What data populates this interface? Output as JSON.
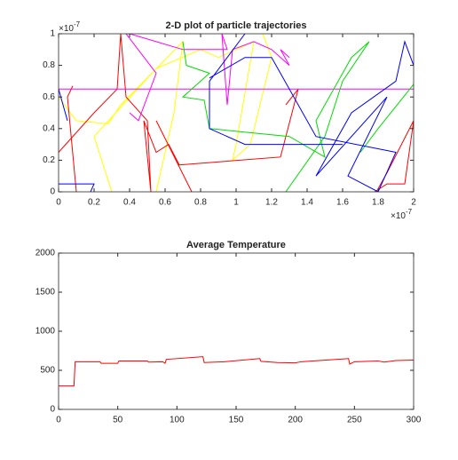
{
  "chart_data": [
    {
      "type": "line",
      "title": "2-D plot of particle trajectories",
      "xlim": [
        0,
        2e-07
      ],
      "ylim": [
        0,
        1e-07
      ],
      "xticks": [
        0,
        {
          "value": 2e-08,
          "label": "0.2"
        },
        {
          "value": 4e-08,
          "label": "0.4"
        },
        {
          "value": 6e-08,
          "label": "0.6"
        },
        {
          "value": 8e-08,
          "label": "0.8"
        },
        {
          "value": 1e-07,
          "label": "1"
        },
        {
          "value": 1.2e-07,
          "label": "1.2"
        },
        {
          "value": 1.4e-07,
          "label": "1.4"
        },
        {
          "value": 1.6e-07,
          "label": "1.6"
        },
        {
          "value": 1.8e-07,
          "label": "1.8"
        },
        {
          "value": 2e-07,
          "label": "2"
        }
      ],
      "yticks": [
        0,
        {
          "value": 2e-08,
          "label": "0.2"
        },
        {
          "value": 4e-08,
          "label": "0.4"
        },
        {
          "value": 6e-08,
          "label": "0.6"
        },
        {
          "value": 8e-08,
          "label": "0.8"
        },
        {
          "value": 1e-07,
          "label": "1"
        }
      ],
      "xexponent": {
        "base": "×10",
        "power": "-7"
      },
      "yexponent": {
        "base": "×10",
        "power": "-7"
      },
      "series": [
        {
          "color": "#ffff00",
          "x": [
            0,
            1e-08,
            2.8e-08,
            3.5e-08,
            7e-08,
            6.5e-08,
            5.5e-08,
            null,
            3e-08,
            2e-08,
            5.5e-08,
            8e-08,
            9e-08,
            1.1e-07,
            1e-07,
            9.8e-08,
            1.08e-07,
            1.2e-07,
            1.15e-07
          ],
          "values": [
            6e-08,
            4.5e-08,
            4.3e-08,
            5.5e-08,
            9.5e-08,
            5e-08,
            0,
            null,
            0,
            3.5e-08,
            7.8e-08,
            9e-08,
            8.5e-08,
            9.5e-08,
            3e-08,
            2e-08,
            3e-08,
            8.5e-08,
            1e-07
          ]
        },
        {
          "color": "#ff0000",
          "x": [
            0,
            2e-08,
            3.3e-08,
            3.5e-08,
            3.8e-08,
            5e-08,
            5.2e-08,
            4.8e-08,
            5.5e-08,
            6.2e-08,
            6.8e-08,
            1.25e-07,
            1.35e-07,
            1.28e-07,
            null,
            5.5e-08,
            7.5e-08,
            null,
            1.78e-07,
            1.85e-07,
            1.95e-07,
            2e-07,
            1.85e-07,
            1.8e-07,
            null,
            1e-08,
            5e-09,
            8e-09
          ],
          "values": [
            2.5e-08,
            5e-08,
            6.5e-08,
            1e-07,
            6e-08,
            4.5e-08,
            0,
            4.5e-08,
            2.5e-08,
            3e-08,
            1.7e-08,
            2.2e-08,
            6.5e-08,
            5.5e-08,
            null,
            4.5e-08,
            0,
            null,
            0,
            5e-09,
            5e-09,
            4.5e-08,
            1.2e-08,
            2e-09,
            null,
            0,
            6e-08,
            6.7e-08
          ]
        },
        {
          "color": "#ff00ff",
          "x": [
            0,
            2e-07,
            null,
            4e-08,
            4.5e-08,
            5.5e-08,
            3.8e-08,
            4e-08,
            5.5e-08,
            7e-08,
            9.5e-08,
            9.2e-08,
            9.5e-08,
            9.8e-08,
            1.1e-07,
            1.2e-07,
            1.3e-07,
            1.25e-07,
            1.3e-07
          ],
          "values": [
            6.5e-08,
            6.5e-08,
            null,
            5e-08,
            4.5e-08,
            7.5e-08,
            1e-07,
            1e-07,
            9.5e-08,
            9e-08,
            9e-08,
            1e-07,
            5.5e-08,
            9e-08,
            9.5e-08,
            9e-08,
            8e-08,
            9e-08,
            8.5e-08
          ]
        },
        {
          "color": "#00dd00",
          "x": [
            7e-08,
            7.2e-08,
            8.5e-08,
            7e-08,
            8.2e-08,
            8.5e-08,
            1.3e-07,
            1.5e-07,
            1.45e-07,
            1.65e-07,
            1.75e-07,
            1.6e-07,
            1.5e-07,
            1.28e-07,
            null,
            1.7e-07,
            1.8e-07,
            2e-07
          ],
          "values": [
            9.5e-08,
            8e-08,
            7.5e-08,
            6e-08,
            5.8e-08,
            4e-08,
            3.5e-08,
            2.2e-08,
            4.5e-08,
            8.5e-08,
            9.5e-08,
            7e-08,
            3.5e-08,
            0,
            null,
            2.5e-08,
            4e-08,
            6.8e-08
          ]
        },
        {
          "color": "#0000ff",
          "x": [
            0,
            2e-08,
            1.8e-08,
            null,
            0,
            5e-09,
            null,
            8.5e-08,
            1.05e-07,
            1.2e-07,
            1.45e-07,
            1.9e-07,
            1.8e-07,
            1.63e-07,
            1.85e-07,
            1.45e-07,
            1.65e-07,
            1.9e-07,
            1.95e-07,
            2e-07,
            null,
            1.6e-07,
            1.05e-07,
            8.5e-08,
            8.5e-08,
            9.5e-08,
            1.05e-07
          ],
          "values": [
            5e-09,
            5e-09,
            0,
            null,
            6.5e-08,
            4.5e-08,
            null,
            7.2e-08,
            8.5e-08,
            8.5e-08,
            3.5e-08,
            2.5e-08,
            0,
            1e-08,
            6e-08,
            1e-08,
            5e-08,
            7e-08,
            9.5e-08,
            8e-08,
            null,
            3e-08,
            3e-08,
            4e-08,
            7e-08,
            8.5e-08,
            1e-07
          ]
        }
      ]
    },
    {
      "type": "line",
      "title": "Average Temperature",
      "xlim": [
        0,
        300
      ],
      "ylim": [
        0,
        2000
      ],
      "xticks": [
        0,
        50,
        100,
        150,
        200,
        250,
        300
      ],
      "yticks": [
        0,
        500,
        1000,
        1500,
        2000
      ],
      "series": [
        {
          "color": "#ff0000",
          "x": [
            0,
            13,
            14,
            35,
            36,
            50,
            51,
            75,
            76,
            88,
            90,
            91,
            122,
            123,
            140,
            170,
            171,
            185,
            200,
            205,
            245,
            246,
            250,
            270,
            275,
            285,
            300
          ],
          "values": [
            300,
            300,
            610,
            610,
            590,
            590,
            620,
            620,
            605,
            610,
            590,
            640,
            675,
            600,
            610,
            650,
            615,
            600,
            595,
            610,
            650,
            580,
            610,
            620,
            605,
            625,
            630
          ]
        }
      ]
    }
  ]
}
